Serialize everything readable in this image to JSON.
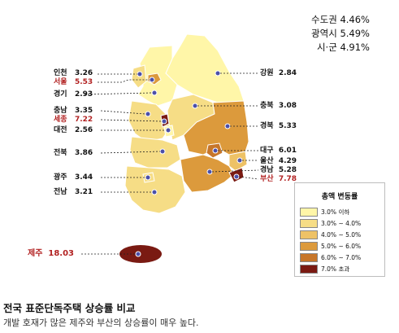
{
  "summary": [
    {
      "name": "수도권",
      "value": "4.46%"
    },
    {
      "name": "광역시",
      "value": "5.49%"
    },
    {
      "name": "시·군",
      "value": "4.91%"
    }
  ],
  "regions": {
    "incheon": {
      "name": "인천",
      "value": "3.26"
    },
    "seoul": {
      "name": "서울",
      "value": "5.53"
    },
    "gyeonggi": {
      "name": "경기",
      "value": "2.93"
    },
    "chungnam": {
      "name": "충남",
      "value": "3.35"
    },
    "sejong": {
      "name": "세종",
      "value": "7.22"
    },
    "daejeon": {
      "name": "대전",
      "value": "2.56"
    },
    "jeonbuk": {
      "name": "전북",
      "value": "3.86"
    },
    "gwangju": {
      "name": "광주",
      "value": "3.44"
    },
    "jeonnam": {
      "name": "전남",
      "value": "3.21"
    },
    "jeju": {
      "name": "제주",
      "value": "18.03"
    },
    "gangwon": {
      "name": "강원",
      "value": "2.84"
    },
    "chungbuk": {
      "name": "충북",
      "value": "3.08"
    },
    "gyeongbuk": {
      "name": "경북",
      "value": "5.33"
    },
    "daegu": {
      "name": "대구",
      "value": "6.01"
    },
    "ulsan": {
      "name": "울산",
      "value": "4.29"
    },
    "gyeongnam": {
      "name": "경남",
      "value": "5.28"
    },
    "busan": {
      "name": "부산",
      "value": "7.78"
    }
  },
  "legend": {
    "title": "총액 변동률",
    "items": [
      {
        "label": "3.0% 이하",
        "color": "#fff6a8"
      },
      {
        "label": "3.0% ~ 4.0%",
        "color": "#f6dd86"
      },
      {
        "label": "4.0% ~ 5.0%",
        "color": "#eec266"
      },
      {
        "label": "5.0% ~ 6.0%",
        "color": "#dc9a3c"
      },
      {
        "label": "6.0% ~ 7.0%",
        "color": "#c7762a"
      },
      {
        "label": "7.0% 초과",
        "color": "#7a1a12"
      }
    ]
  },
  "caption": {
    "title": "전국 표준단독주택 상승률 비교",
    "subtitle": "개발 호재가 많은 제주와 부산의 상승률이 매우 높다."
  },
  "colors": {
    "highlight_text": "#b22222"
  }
}
